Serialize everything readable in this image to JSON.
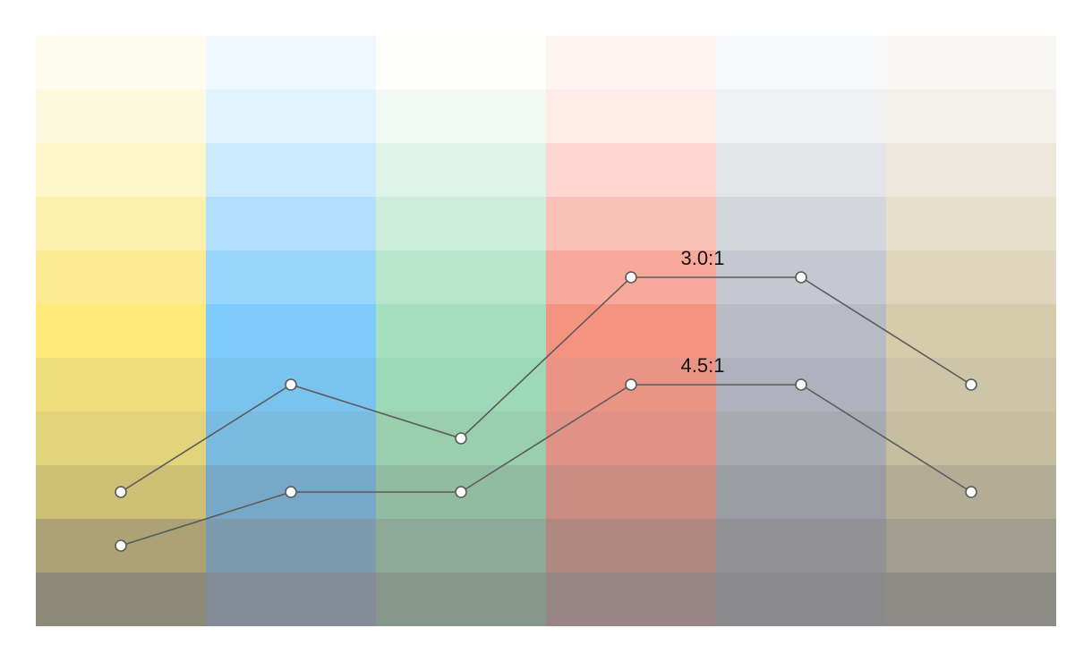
{
  "palette": {
    "columns": [
      {
        "name": "yellow",
        "swatches": [
          "#fefded",
          "#fdf9de",
          "#fdf6c8",
          "#fdf0ac",
          "#fdeb93",
          "#ffe979",
          "#efdc7b",
          "#e2d47b",
          "#cdbf73",
          "#aca276",
          "#8e8a77"
        ]
      },
      {
        "name": "blue",
        "swatches": [
          "#f0f8ff",
          "#e1f3fd",
          "#cbeafc",
          "#b1dffc",
          "#98d5fc",
          "#7dcbfd",
          "#7ac3ef",
          "#7cbbe1",
          "#78a8c7",
          "#7e9aae",
          "#838c95"
        ]
      },
      {
        "name": "green",
        "swatches": [
          "#fefefd",
          "#f2f9f5",
          "#dff3e8",
          "#cdecdb",
          "#b8e6cc",
          "#a5dfbf",
          "#9dd9b7",
          "#99cfad",
          "#91bca2",
          "#8caa97",
          "#85978b"
        ]
      },
      {
        "name": "red",
        "swatches": [
          "#fff3f1",
          "#feeae7",
          "#fdd7d2",
          "#fbc0b7",
          "#f8a99c",
          "#f59380",
          "#ea9486",
          "#e09284",
          "#c88c81",
          "#b08880",
          "#968584"
        ]
      },
      {
        "name": "gray",
        "swatches": [
          "#f7f8fa",
          "#eff0f2",
          "#e3e4e8",
          "#d4d6dd",
          "#c5c8d0",
          "#b8bbc4",
          "#afb2bc",
          "#a8aab2",
          "#9b9ca3",
          "#929294",
          "#8a898b"
        ]
      },
      {
        "name": "tan",
        "swatches": [
          "#f8f7f4",
          "#f3f0e9",
          "#ece7da",
          "#e5dfcb",
          "#ddd6bc",
          "#d5ccab",
          "#ccc5a7",
          "#c5be9f",
          "#b4ad96",
          "#a19d8e",
          "#8d8c85"
        ]
      }
    ]
  },
  "contrast_lines": [
    {
      "label": "3.0:1",
      "points": [
        {
          "column": 0,
          "step": 8
        },
        {
          "column": 1,
          "step": 6
        },
        {
          "column": 2,
          "step": 7
        },
        {
          "column": 3,
          "step": 4
        },
        {
          "column": 4,
          "step": 4
        },
        {
          "column": 5,
          "step": 6
        }
      ]
    },
    {
      "label": "4.5:1",
      "points": [
        {
          "column": 0,
          "step": 9
        },
        {
          "column": 1,
          "step": 8
        },
        {
          "column": 2,
          "step": 8
        },
        {
          "column": 3,
          "step": 6
        },
        {
          "column": 4,
          "step": 6
        },
        {
          "column": 5,
          "step": 8
        }
      ]
    }
  ]
}
